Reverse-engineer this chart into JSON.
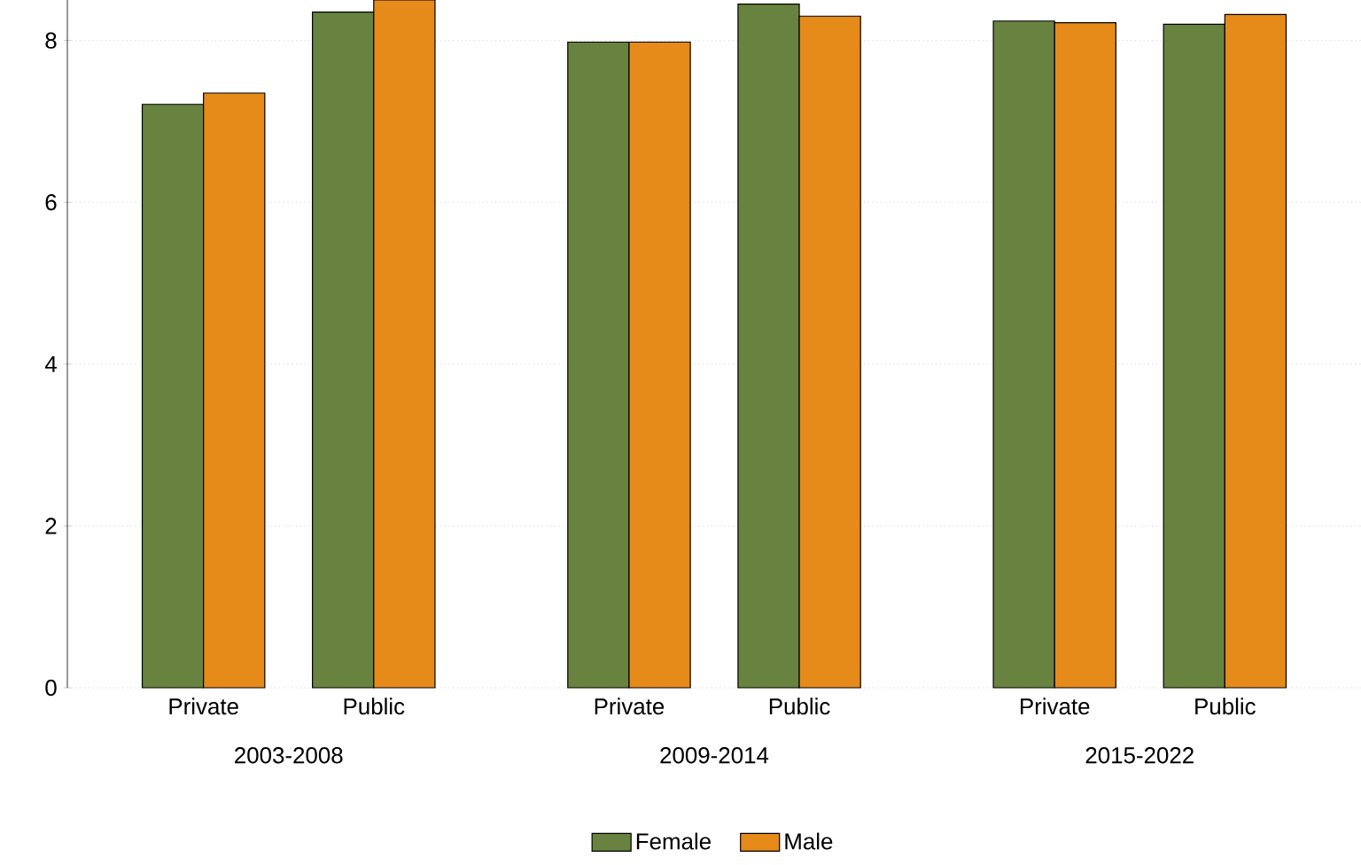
{
  "chart_data": {
    "type": "bar",
    "categories": [
      "Private",
      "Public",
      "Private",
      "Public",
      "Private",
      "Public"
    ],
    "series": [
      {
        "name": "Female",
        "color": "#68833f",
        "values": [
          7.21,
          8.35,
          7.98,
          8.45,
          8.24,
          8.2
        ]
      },
      {
        "name": "Male",
        "color": "#e68a1a",
        "values": [
          7.35,
          8.5,
          7.98,
          8.3,
          8.22,
          8.32
        ]
      }
    ],
    "annotations": [
      "2003-2008",
      "2009-2014",
      "2015-2022"
    ],
    "ylim": [
      0,
      8.5
    ],
    "yticks": [
      0,
      2,
      4,
      6,
      8
    ],
    "grid": "y",
    "legend": "bottom"
  }
}
